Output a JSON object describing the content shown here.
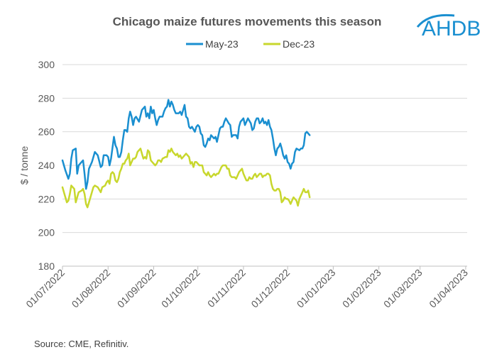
{
  "logo": {
    "text": "AHDB",
    "color": "#1a8fd0"
  },
  "source": "Source: CME, Refinitiv.",
  "chart_data": {
    "type": "line",
    "title": "Chicago maize futures movements this season",
    "xlabel": "",
    "ylabel": "$ / tonne",
    "ylim": [
      180,
      300
    ],
    "yticks": [
      180,
      200,
      220,
      240,
      260,
      280,
      300
    ],
    "xticks": [
      {
        "label": "01/07/2022",
        "day": 0
      },
      {
        "label": "01/08/2022",
        "day": 31
      },
      {
        "label": "01/09/2022",
        "day": 62
      },
      {
        "label": "01/10/2022",
        "day": 92
      },
      {
        "label": "01/11/2022",
        "day": 123
      },
      {
        "label": "01/12/2022",
        "day": 153
      },
      {
        "label": "01/01/2023",
        "day": 184
      },
      {
        "label": "01/02/2023",
        "day": 215
      },
      {
        "label": "01/03/2023",
        "day": 243
      },
      {
        "label": "01/04/2023",
        "day": 274
      }
    ],
    "xlim": [
      0,
      275
    ],
    "grid": true,
    "legend": "top-center",
    "series": [
      {
        "name": "May-23",
        "color": "#1a8fd0",
        "points": [
          [
            0,
            243
          ],
          [
            2,
            237
          ],
          [
            4,
            232
          ],
          [
            5,
            235
          ],
          [
            6,
            244
          ],
          [
            7,
            249
          ],
          [
            9,
            250
          ],
          [
            10,
            235
          ],
          [
            11,
            240
          ],
          [
            12,
            241
          ],
          [
            14,
            243
          ],
          [
            15,
            235
          ],
          [
            16,
            226
          ],
          [
            17,
            230
          ],
          [
            18,
            238
          ],
          [
            20,
            242
          ],
          [
            22,
            248
          ],
          [
            24,
            246
          ],
          [
            26,
            239
          ],
          [
            27,
            240
          ],
          [
            28,
            246
          ],
          [
            30,
            246
          ],
          [
            31,
            245
          ],
          [
            32,
            240
          ],
          [
            33,
            244
          ],
          [
            35,
            257
          ],
          [
            36,
            252
          ],
          [
            37,
            250
          ],
          [
            38,
            245
          ],
          [
            39,
            245
          ],
          [
            40,
            248
          ],
          [
            41,
            255
          ],
          [
            42,
            261
          ],
          [
            43,
            261
          ],
          [
            44,
            260
          ],
          [
            45,
            268
          ],
          [
            46,
            272
          ],
          [
            47,
            269
          ],
          [
            48,
            264
          ],
          [
            49,
            268
          ],
          [
            50,
            269
          ],
          [
            52,
            266
          ],
          [
            54,
            273
          ],
          [
            56,
            275
          ],
          [
            57,
            269
          ],
          [
            58,
            271
          ],
          [
            59,
            268
          ],
          [
            60,
            275
          ],
          [
            61,
            271
          ],
          [
            62,
            273
          ],
          [
            63,
            268
          ],
          [
            64,
            264
          ],
          [
            65,
            267
          ],
          [
            66,
            269
          ],
          [
            68,
            269
          ],
          [
            69,
            272
          ],
          [
            70,
            274
          ],
          [
            71,
            275
          ],
          [
            72,
            279
          ],
          [
            73,
            275
          ],
          [
            74,
            278
          ],
          [
            75,
            276
          ],
          [
            76,
            273
          ],
          [
            77,
            271
          ],
          [
            79,
            271
          ],
          [
            80,
            272
          ],
          [
            81,
            270
          ],
          [
            82,
            273
          ],
          [
            83,
            276
          ],
          [
            84,
            269
          ],
          [
            85,
            268
          ],
          [
            86,
            263
          ],
          [
            87,
            262
          ],
          [
            88,
            263
          ],
          [
            90,
            260
          ],
          [
            91,
            263
          ],
          [
            92,
            264
          ],
          [
            93,
            263
          ],
          [
            94,
            259
          ],
          [
            95,
            258
          ],
          [
            96,
            252
          ],
          [
            97,
            251
          ],
          [
            98,
            253
          ],
          [
            99,
            256
          ],
          [
            100,
            255
          ],
          [
            101,
            258
          ],
          [
            103,
            256
          ],
          [
            104,
            257
          ],
          [
            105,
            254
          ],
          [
            106,
            258
          ],
          [
            107,
            262
          ],
          [
            108,
            263
          ],
          [
            109,
            263
          ],
          [
            110,
            266
          ],
          [
            111,
            268
          ],
          [
            113,
            265
          ],
          [
            114,
            264
          ],
          [
            115,
            257
          ],
          [
            116,
            258
          ],
          [
            118,
            258
          ],
          [
            119,
            256
          ],
          [
            120,
            263
          ],
          [
            121,
            266
          ],
          [
            122,
            267
          ],
          [
            123,
            268
          ],
          [
            124,
            264
          ],
          [
            125,
            266
          ],
          [
            126,
            268
          ],
          [
            128,
            265
          ],
          [
            129,
            261
          ],
          [
            130,
            262
          ],
          [
            131,
            266
          ],
          [
            132,
            268
          ],
          [
            133,
            268
          ],
          [
            134,
            265
          ],
          [
            135,
            266
          ],
          [
            136,
            268
          ],
          [
            137,
            265
          ],
          [
            138,
            266
          ],
          [
            139,
            264
          ],
          [
            140,
            267
          ],
          [
            141,
            263
          ],
          [
            142,
            261
          ],
          [
            143,
            256
          ],
          [
            144,
            250
          ],
          [
            145,
            246
          ],
          [
            146,
            250
          ],
          [
            147,
            251
          ],
          [
            148,
            253
          ],
          [
            149,
            250
          ],
          [
            150,
            246
          ],
          [
            151,
            244
          ],
          [
            152,
            246
          ],
          [
            153,
            242
          ],
          [
            154,
            241
          ],
          [
            155,
            238
          ],
          [
            156,
            241
          ],
          [
            157,
            242
          ],
          [
            158,
            248
          ],
          [
            159,
            250
          ],
          [
            161,
            249
          ],
          [
            162,
            250
          ],
          [
            163,
            250
          ],
          [
            164,
            252
          ],
          [
            165,
            259
          ],
          [
            166,
            260
          ],
          [
            167,
            259
          ],
          [
            168,
            258
          ]
        ]
      },
      {
        "name": "Dec-23",
        "color": "#c8d72d",
        "points": [
          [
            0,
            227
          ],
          [
            2,
            221
          ],
          [
            3,
            218
          ],
          [
            4,
            219
          ],
          [
            5,
            223
          ],
          [
            6,
            228
          ],
          [
            7,
            227
          ],
          [
            8,
            226
          ],
          [
            9,
            218
          ],
          [
            10,
            221
          ],
          [
            11,
            224
          ],
          [
            13,
            225
          ],
          [
            14,
            226
          ],
          [
            15,
            223
          ],
          [
            16,
            217
          ],
          [
            17,
            215
          ],
          [
            18,
            218
          ],
          [
            19,
            221
          ],
          [
            21,
            227
          ],
          [
            22,
            228
          ],
          [
            24,
            227
          ],
          [
            26,
            224
          ],
          [
            27,
            227
          ],
          [
            29,
            228
          ],
          [
            30,
            230
          ],
          [
            31,
            231
          ],
          [
            32,
            229
          ],
          [
            33,
            235
          ],
          [
            34,
            236
          ],
          [
            35,
            235
          ],
          [
            36,
            231
          ],
          [
            37,
            230
          ],
          [
            38,
            232
          ],
          [
            39,
            236
          ],
          [
            40,
            238
          ],
          [
            41,
            241
          ],
          [
            42,
            241
          ],
          [
            43,
            243
          ],
          [
            44,
            244
          ],
          [
            45,
            247
          ],
          [
            46,
            240
          ],
          [
            47,
            242
          ],
          [
            48,
            244
          ],
          [
            49,
            244
          ],
          [
            50,
            245
          ],
          [
            51,
            248
          ],
          [
            52,
            249
          ],
          [
            53,
            250
          ],
          [
            54,
            247
          ],
          [
            55,
            244
          ],
          [
            56,
            245
          ],
          [
            57,
            244
          ],
          [
            58,
            249
          ],
          [
            59,
            248
          ],
          [
            60,
            243
          ],
          [
            61,
            242
          ],
          [
            62,
            241
          ],
          [
            63,
            240
          ],
          [
            64,
            241
          ],
          [
            65,
            243
          ],
          [
            66,
            243
          ],
          [
            67,
            242
          ],
          [
            68,
            244
          ],
          [
            70,
            245
          ],
          [
            71,
            245
          ],
          [
            72,
            249
          ],
          [
            73,
            248
          ],
          [
            74,
            250
          ],
          [
            75,
            248
          ],
          [
            76,
            247
          ],
          [
            77,
            246
          ],
          [
            78,
            247
          ],
          [
            79,
            245
          ],
          [
            80,
            246
          ],
          [
            81,
            244
          ],
          [
            82,
            245
          ],
          [
            84,
            247
          ],
          [
            85,
            246
          ],
          [
            86,
            245
          ],
          [
            87,
            241
          ],
          [
            88,
            242
          ],
          [
            89,
            239
          ],
          [
            90,
            242
          ],
          [
            91,
            242
          ],
          [
            92,
            241
          ],
          [
            93,
            240
          ],
          [
            95,
            240
          ],
          [
            96,
            236
          ],
          [
            97,
            235
          ],
          [
            98,
            234
          ],
          [
            99,
            236
          ],
          [
            100,
            234
          ],
          [
            101,
            233
          ],
          [
            102,
            234
          ],
          [
            103,
            235
          ],
          [
            104,
            234
          ],
          [
            105,
            235
          ],
          [
            106,
            235
          ],
          [
            107,
            237
          ],
          [
            108,
            239
          ],
          [
            109,
            240
          ],
          [
            110,
            240
          ],
          [
            111,
            240
          ],
          [
            112,
            238
          ],
          [
            113,
            238
          ],
          [
            114,
            234
          ],
          [
            115,
            233
          ],
          [
            117,
            233
          ],
          [
            118,
            232
          ],
          [
            119,
            234
          ],
          [
            120,
            236
          ],
          [
            121,
            237
          ],
          [
            122,
            238
          ],
          [
            123,
            235
          ],
          [
            124,
            233
          ],
          [
            125,
            231
          ],
          [
            126,
            231
          ],
          [
            127,
            233
          ],
          [
            128,
            232
          ],
          [
            129,
            232
          ],
          [
            130,
            234
          ],
          [
            131,
            235
          ],
          [
            132,
            233
          ],
          [
            133,
            234
          ],
          [
            134,
            235
          ],
          [
            135,
            235
          ],
          [
            136,
            233
          ],
          [
            137,
            234
          ],
          [
            138,
            234
          ],
          [
            139,
            235
          ],
          [
            140,
            235
          ],
          [
            141,
            234
          ],
          [
            142,
            229
          ],
          [
            143,
            226
          ],
          [
            144,
            225
          ],
          [
            145,
            225
          ],
          [
            146,
            226
          ],
          [
            147,
            226
          ],
          [
            148,
            224
          ],
          [
            149,
            218
          ],
          [
            150,
            219
          ],
          [
            151,
            221
          ],
          [
            152,
            220
          ],
          [
            153,
            220
          ],
          [
            154,
            219
          ],
          [
            155,
            217
          ],
          [
            156,
            219
          ],
          [
            157,
            221
          ],
          [
            158,
            220
          ],
          [
            159,
            219
          ],
          [
            160,
            216
          ],
          [
            161,
            220
          ],
          [
            162,
            222
          ],
          [
            163,
            224
          ],
          [
            164,
            226
          ],
          [
            165,
            224
          ],
          [
            166,
            224
          ],
          [
            167,
            225
          ],
          [
            168,
            221
          ]
        ]
      }
    ]
  }
}
